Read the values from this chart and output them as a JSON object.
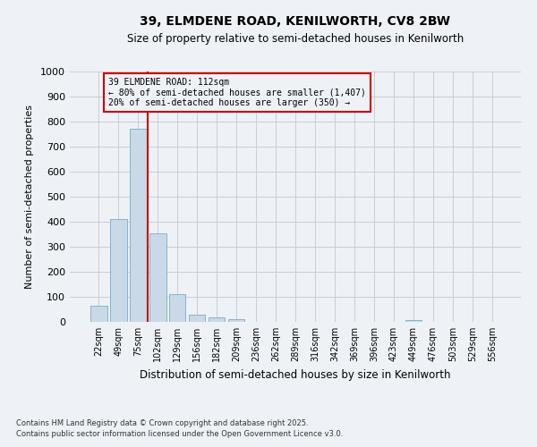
{
  "title1": "39, ELMDENE ROAD, KENILWORTH, CV8 2BW",
  "title2": "Size of property relative to semi-detached houses in Kenilworth",
  "xlabel": "Distribution of semi-detached houses by size in Kenilworth",
  "ylabel": "Number of semi-detached properties",
  "bar_labels": [
    "22sqm",
    "49sqm",
    "75sqm",
    "102sqm",
    "129sqm",
    "156sqm",
    "182sqm",
    "209sqm",
    "236sqm",
    "262sqm",
    "289sqm",
    "316sqm",
    "342sqm",
    "369sqm",
    "396sqm",
    "423sqm",
    "449sqm",
    "476sqm",
    "503sqm",
    "529sqm",
    "556sqm"
  ],
  "bar_values": [
    63,
    410,
    770,
    355,
    112,
    30,
    17,
    10,
    0,
    0,
    0,
    0,
    0,
    0,
    0,
    0,
    7,
    0,
    0,
    0,
    0
  ],
  "bar_color": "#c9d9e8",
  "bar_edge_color": "#7aaac8",
  "vline_color": "#cc0000",
  "annotation_title": "39 ELMDENE ROAD: 112sqm",
  "annotation_line1": "← 80% of semi-detached houses are smaller (1,407)",
  "annotation_line2": "20% of semi-detached houses are larger (350) →",
  "annotation_box_color": "#cc0000",
  "ylim": [
    0,
    1000
  ],
  "yticks": [
    0,
    100,
    200,
    300,
    400,
    500,
    600,
    700,
    800,
    900,
    1000
  ],
  "footnote1": "Contains HM Land Registry data © Crown copyright and database right 2025.",
  "footnote2": "Contains public sector information licensed under the Open Government Licence v3.0.",
  "bg_color": "#eef2f7",
  "grid_color": "#c8cdd6"
}
